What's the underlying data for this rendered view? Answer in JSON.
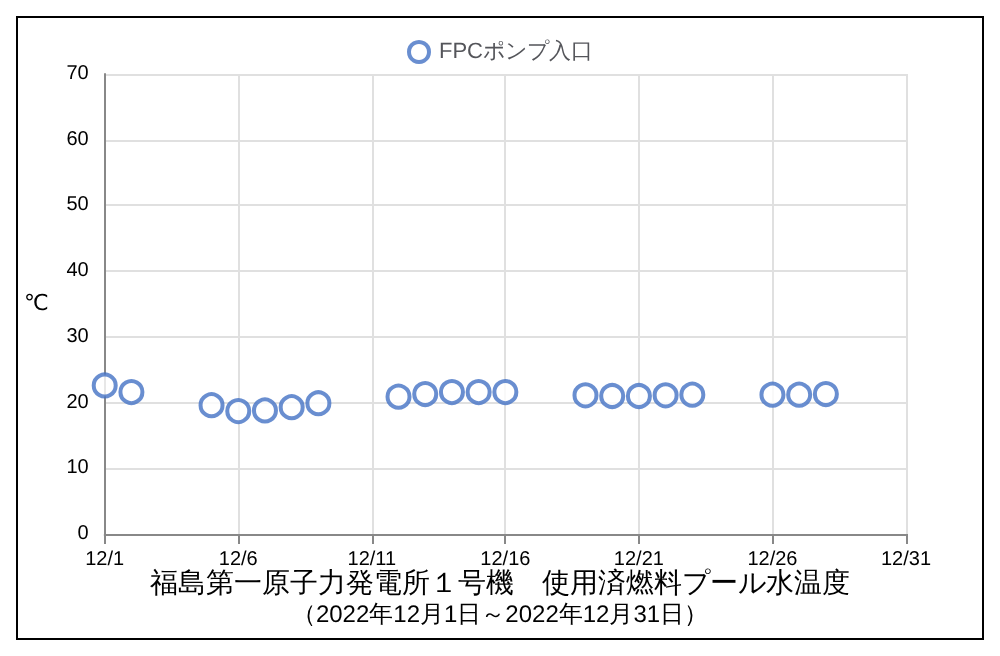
{
  "chart_data": {
    "type": "scatter",
    "title": "福島第一原子力発電所１号機　使用済燃料プール水温度",
    "subtitle": "（2022年12月1日～2022年12月31日）",
    "ylabel": "℃",
    "x": [
      "--12-01",
      "--12-02",
      "--12-05",
      "--12-06",
      "--12-07",
      "--12-08",
      "--12-09",
      "--12-12",
      "--12-13",
      "--12-14",
      "--12-15",
      "--12-16",
      "--12-19",
      "--12-20",
      "--12-21",
      "--12-22",
      "--12-23",
      "--12-26",
      "--12-27",
      "--12-28"
    ],
    "series": [
      {
        "name": "FPCポンプ入口",
        "color": "#4472c4",
        "values": [
          22.6,
          21.6,
          19.6,
          18.7,
          18.8,
          19.3,
          19.9,
          20.9,
          21.3,
          21.6,
          21.6,
          21.6,
          21.1,
          21.0,
          21.0,
          21.1,
          21.2,
          21.2,
          21.2,
          21.3
        ]
      }
    ],
    "xlim": [
      "--12-01",
      "--12-31"
    ],
    "xticks": [
      {
        "value": "--12-01",
        "label": "12/1"
      },
      {
        "value": "--12-06",
        "label": "12/6"
      },
      {
        "value": "--12-11",
        "label": "12/11"
      },
      {
        "value": "--12-16",
        "label": "12/16"
      },
      {
        "value": "--12-21",
        "label": "12/21"
      },
      {
        "value": "--12-26",
        "label": "12/26"
      },
      {
        "value": "--12-31",
        "label": "12/31"
      }
    ],
    "ylim": [
      0,
      70
    ],
    "yticks": [
      0,
      10,
      20,
      30,
      40,
      50,
      60,
      70
    ],
    "grid": true,
    "legend": "top",
    "marker": "circle"
  }
}
